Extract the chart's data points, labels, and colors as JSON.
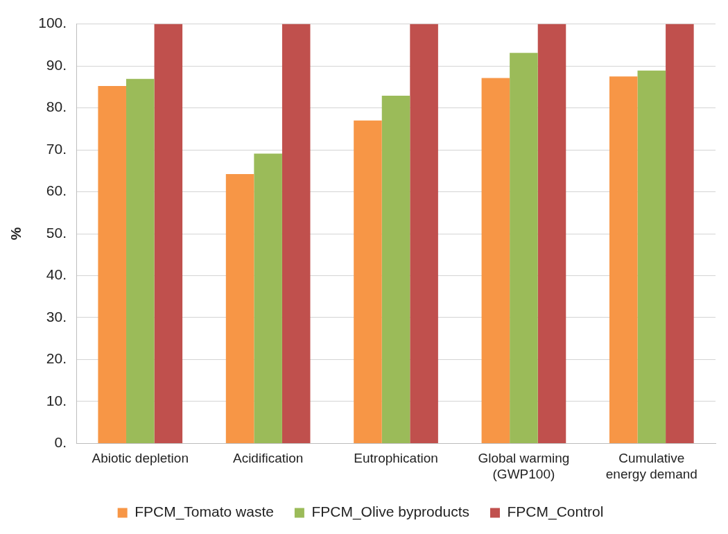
{
  "chart_data": {
    "type": "bar",
    "ylabel": "%",
    "categories": [
      "Abiotic depletion",
      "Acidification",
      "Eutrophication",
      "Global warming (GWP100)",
      "Cumulative energy demand"
    ],
    "series": [
      {
        "name": "FPCM_Tomato waste",
        "color": "#f79646",
        "values": [
          85.2,
          64.2,
          77.0,
          87.1,
          87.5
        ]
      },
      {
        "name": "FPCM_Olive byproducts",
        "color": "#9bbb59",
        "values": [
          86.9,
          69.1,
          82.9,
          93.1,
          88.9
        ]
      },
      {
        "name": "FPCM_Control",
        "color": "#c0504d",
        "values": [
          100,
          100,
          100,
          100,
          100
        ]
      }
    ],
    "ylim": [
      0,
      100
    ],
    "yticks": [
      {
        "value": 0,
        "label": "0."
      },
      {
        "value": 10,
        "label": "10."
      },
      {
        "value": 20,
        "label": "20."
      },
      {
        "value": 30,
        "label": "30."
      },
      {
        "value": 40,
        "label": "40."
      },
      {
        "value": 50,
        "label": "50."
      },
      {
        "value": 60,
        "label": "60."
      },
      {
        "value": 70,
        "label": "70."
      },
      {
        "value": 80,
        "label": "80."
      },
      {
        "value": 90,
        "label": "90."
      },
      {
        "value": 100,
        "label": "100."
      }
    ],
    "grid": "y",
    "legend": "bottom"
  }
}
